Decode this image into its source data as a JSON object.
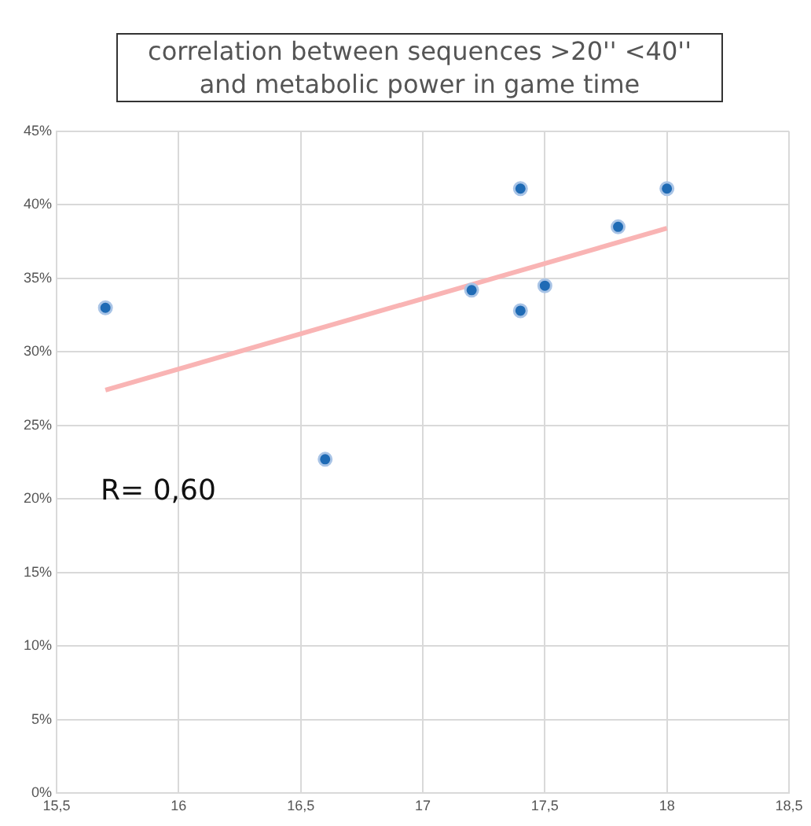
{
  "chart_data": {
    "type": "scatter",
    "title": "correlation between sequences >20'' <40''\nand metabolic power in game time",
    "series": [
      {
        "color": "#1f6bb5",
        "marker": "circle",
        "x": [
          15.7,
          16.6,
          17.2,
          17.4,
          17.4,
          17.5,
          17.8,
          18
        ],
        "values": [
          33,
          22.7,
          34.2,
          41.1,
          32.8,
          34.5,
          38.5,
          41.1
        ]
      },
      {
        "type": "line",
        "marker": "none",
        "color": "#f9b4b4",
        "x": [
          15.7,
          18
        ],
        "values": [
          27.4,
          38.4
        ]
      }
    ],
    "xlim": [
      15.5,
      18.5
    ],
    "xticks": [
      {
        "value": 15.5,
        "label": "15,5"
      },
      16,
      {
        "value": 16.5,
        "label": "16,5"
      },
      17,
      {
        "value": 17.5,
        "label": "17,5"
      },
      18,
      {
        "value": 18.5,
        "label": "18,5"
      }
    ],
    "ylim": [
      0,
      45
    ],
    "yticks": [
      {
        "value": 0,
        "label": "0%"
      },
      {
        "value": 5,
        "label": "5%"
      },
      {
        "value": 10,
        "label": "10%"
      },
      {
        "value": 15,
        "label": "15%"
      },
      {
        "value": 20,
        "label": "20%"
      },
      {
        "value": 25,
        "label": "25%"
      },
      {
        "value": 30,
        "label": "30%"
      },
      {
        "value": 35,
        "label": "35%"
      },
      {
        "value": 40,
        "label": "40%"
      },
      {
        "value": 45,
        "label": "45%"
      }
    ],
    "grid": true,
    "annotations": [
      "R= 0,60"
    ]
  }
}
